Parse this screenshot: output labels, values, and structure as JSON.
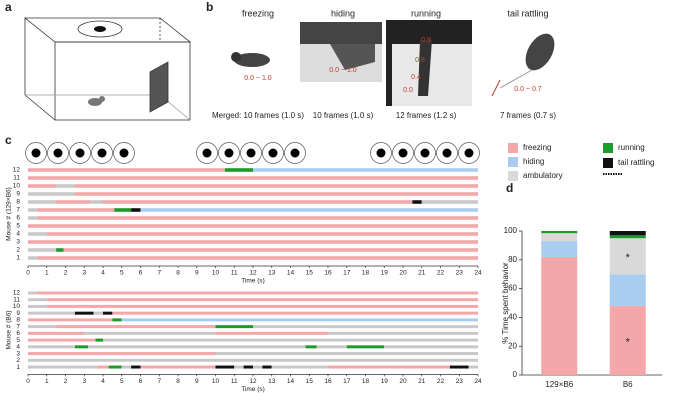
{
  "panel_labels": [
    "a",
    "b",
    "c",
    "d"
  ],
  "panel_b": {
    "columns": [
      {
        "title": "freezing",
        "annotations": [
          "0.0 ~ 1.0"
        ],
        "caption": "Merged: 10 frames (1.0 s)"
      },
      {
        "title": "hiding",
        "annotations": [
          "0.0 ~ 1.0"
        ],
        "caption": "10 frames (1.0 s)"
      },
      {
        "title": "running",
        "annotations": [
          "0.0",
          "0.4",
          "0.8",
          "0.9"
        ],
        "caption": "12 frames (1.2 s)"
      },
      {
        "title": "tail rattling",
        "annotations": [
          "0.0 ~ 0.7"
        ],
        "caption": "7 frames (0.7 s)"
      }
    ]
  },
  "chart_data": [
    {
      "type": "ethogram",
      "ylabel": "Mouse # (129×B6)",
      "xlabel": "Time (s)",
      "xlim": [
        0,
        24
      ],
      "xticks": [
        0,
        1,
        2,
        3,
        4,
        5,
        6,
        7,
        8,
        9,
        10,
        11,
        12,
        13,
        14,
        15,
        16,
        17,
        18,
        19,
        20,
        21,
        22,
        23,
        24
      ],
      "ylim": [
        0.5,
        12.5
      ],
      "yticks": [
        1,
        2,
        3,
        4,
        5,
        6,
        7,
        8,
        9,
        10,
        11,
        12
      ],
      "colors": [
        "#f4a7a9",
        "#a9cdf0",
        "#c8c8c8",
        "#1e9a2a",
        "#111111"
      ],
      "rows": [
        {
          "segments": [
            [
              0,
              0.5,
              2
            ],
            [
              0.5,
              24,
              0
            ]
          ]
        },
        {
          "segments": [
            [
              0,
              1.5,
              2
            ],
            [
              1.5,
              1.9,
              3
            ],
            [
              1.9,
              24,
              0
            ]
          ]
        },
        {
          "segments": [
            [
              0,
              24,
              0
            ]
          ]
        },
        {
          "segments": [
            [
              0,
              1,
              2
            ],
            [
              1,
              24,
              0
            ]
          ]
        },
        {
          "segments": [
            [
              0,
              24,
              0
            ]
          ]
        },
        {
          "segments": [
            [
              0,
              0.5,
              2
            ],
            [
              0.5,
              24,
              0
            ]
          ]
        },
        {
          "segments": [
            [
              0,
              0.5,
              2
            ],
            [
              0.5,
              4.6,
              0
            ],
            [
              4.6,
              5.5,
              3
            ],
            [
              5.5,
              6,
              4
            ],
            [
              6,
              24,
              1
            ]
          ]
        },
        {
          "segments": [
            [
              0,
              1.5,
              2
            ],
            [
              1.5,
              3.3,
              0
            ],
            [
              3.3,
              4,
              2
            ],
            [
              4,
              20.5,
              0
            ],
            [
              20.5,
              21,
              4
            ],
            [
              21,
              24,
              2
            ]
          ]
        },
        {
          "segments": [
            [
              0,
              2.5,
              2
            ],
            [
              2.5,
              24,
              0
            ]
          ]
        },
        {
          "segments": [
            [
              0,
              1.5,
              0
            ],
            [
              1.5,
              2.5,
              2
            ],
            [
              2.5,
              24,
              0
            ]
          ]
        },
        {
          "segments": [
            [
              0,
              24,
              0
            ]
          ]
        },
        {
          "segments": [
            [
              0,
              10.5,
              0
            ],
            [
              10.5,
              12,
              3
            ],
            [
              12,
              24,
              1
            ]
          ]
        }
      ]
    },
    {
      "type": "ethogram",
      "ylabel": "Mouse # (B6)",
      "xlabel": "Time (s)",
      "xlim": [
        0,
        24
      ],
      "xticks": [
        0,
        1,
        2,
        3,
        4,
        5,
        6,
        7,
        8,
        9,
        10,
        11,
        12,
        13,
        14,
        15,
        16,
        17,
        18,
        19,
        20,
        21,
        22,
        23,
        24
      ],
      "ylim": [
        0.5,
        12.5
      ],
      "yticks": [
        1,
        2,
        3,
        4,
        5,
        6,
        7,
        8,
        9,
        10,
        11,
        12
      ],
      "colors": [
        "#f4a7a9",
        "#a9cdf0",
        "#c8c8c8",
        "#1e9a2a",
        "#111111"
      ],
      "rows": [
        {
          "segments": [
            [
              0,
              3.7,
              2
            ],
            [
              3.7,
              4.3,
              0
            ],
            [
              4.3,
              5,
              3
            ],
            [
              5,
              5.5,
              2
            ],
            [
              5.5,
              6,
              4
            ],
            [
              6,
              10,
              0
            ],
            [
              10,
              11,
              4
            ],
            [
              11,
              11.5,
              2
            ],
            [
              11.5,
              12,
              4
            ],
            [
              12,
              12.5,
              2
            ],
            [
              12.5,
              13,
              4
            ],
            [
              13,
              16,
              2
            ],
            [
              16,
              22.5,
              0
            ],
            [
              22.5,
              23.5,
              4
            ],
            [
              23.5,
              24,
              2
            ]
          ]
        },
        {
          "segments": [
            [
              0,
              24,
              2
            ]
          ]
        },
        {
          "segments": [
            [
              0,
              10,
              0
            ],
            [
              10,
              24,
              2
            ]
          ]
        },
        {
          "segments": [
            [
              0,
              2.5,
              2
            ],
            [
              2.5,
              3.2,
              3
            ],
            [
              3.2,
              14.8,
              2
            ],
            [
              14.8,
              15.4,
              3
            ],
            [
              15.4,
              17,
              2
            ],
            [
              17,
              19,
              3
            ],
            [
              19,
              24,
              2
            ]
          ]
        },
        {
          "segments": [
            [
              0,
              3.6,
              0
            ],
            [
              3.6,
              4,
              3
            ],
            [
              4,
              24,
              2
            ]
          ]
        },
        {
          "segments": [
            [
              0,
              3,
              0
            ],
            [
              3,
              10,
              2
            ],
            [
              10,
              16,
              0
            ],
            [
              16,
              24,
              2
            ]
          ]
        },
        {
          "segments": [
            [
              0,
              1.5,
              2
            ],
            [
              1.5,
              10,
              0
            ],
            [
              10,
              12,
              3
            ],
            [
              12,
              24,
              2
            ]
          ]
        },
        {
          "segments": [
            [
              0,
              4.5,
              0
            ],
            [
              4.5,
              5,
              3
            ],
            [
              5,
              24,
              1
            ]
          ]
        },
        {
          "segments": [
            [
              0,
              2.5,
              2
            ],
            [
              2.5,
              3.5,
              4
            ],
            [
              3.5,
              4,
              2
            ],
            [
              4,
              4.5,
              4
            ],
            [
              4.5,
              24,
              0
            ]
          ]
        },
        {
          "segments": [
            [
              0,
              1,
              2
            ],
            [
              1,
              24,
              0
            ]
          ]
        },
        {
          "segments": [
            [
              0,
              1,
              2
            ],
            [
              1,
              24,
              0
            ]
          ]
        },
        {
          "segments": [
            [
              0,
              0.5,
              2
            ],
            [
              0.5,
              24,
              0
            ]
          ]
        }
      ]
    },
    {
      "type": "bar",
      "stacked": true,
      "ylabel": "% Time spent behavior",
      "categories": [
        "129×B6",
        "B6"
      ],
      "series": [
        {
          "name": "freezing",
          "color": "#f4a7a9",
          "values": [
            82,
            48
          ]
        },
        {
          "name": "hiding",
          "color": "#a9cdf0",
          "values": [
            11,
            22
          ]
        },
        {
          "name": "ambulatory",
          "color": "#d9d9d9",
          "values": [
            5.5,
            25
          ]
        },
        {
          "name": "running",
          "color": "#1e9a2a",
          "values": [
            1.5,
            2
          ]
        },
        {
          "name": "tail rattling",
          "color": "#111111",
          "values": [
            0,
            3
          ]
        }
      ],
      "ylim": [
        0,
        100
      ],
      "yticks": [
        0,
        20,
        40,
        60,
        80,
        100
      ],
      "annotations": [
        "*",
        "*"
      ]
    }
  ]
}
